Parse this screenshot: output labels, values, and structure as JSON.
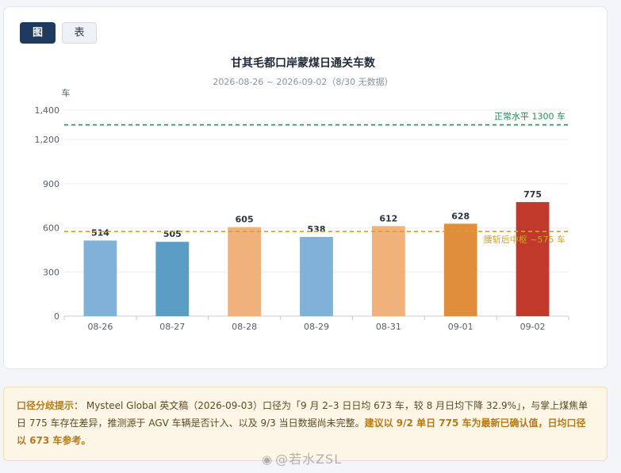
{
  "tabs": [
    {
      "label": "图",
      "active": true
    },
    {
      "label": "表",
      "active": false
    }
  ],
  "chart_data": {
    "type": "bar",
    "title": "甘其毛都口岸蒙煤日通关车数",
    "subtitle": "2026-08-26 ~ 2026-09-02（8/30 无数据）",
    "ylabel": "车",
    "xlabel": "",
    "ylim": [
      0,
      1400
    ],
    "yticks": [
      0,
      300,
      600,
      900,
      1200,
      1400
    ],
    "ytick_labels": [
      "0",
      "300",
      "600",
      "900",
      "1,200",
      "1,400"
    ],
    "categories": [
      "08-26",
      "08-27",
      "08-28",
      "08-29",
      "08-31",
      "09-01",
      "09-02"
    ],
    "values": [
      514,
      505,
      605,
      538,
      612,
      628,
      775
    ],
    "data_labels": [
      "514",
      "505",
      "605",
      "538",
      "612",
      "628",
      "775"
    ],
    "bar_colors": [
      "#7fb2d6",
      "#5b9cc5",
      "#f0b27a",
      "#7fb2d6",
      "#f0b27a",
      "#e08e3c",
      "#c0392b"
    ],
    "grid": true,
    "legend": "none",
    "reference_lines": [
      {
        "label": "正常水平 1300 车",
        "value": 1300,
        "color": "#2e8b57"
      },
      {
        "label": "腰斩后中枢 ~575 车",
        "value": 575,
        "color": "#d4a030"
      }
    ]
  },
  "notice": {
    "lead": "口径分歧提示：",
    "body": "Mysteel Global 英文稿（2026-09-03）口径为「9 月 2–3 日日均 673 车，较 8 月日均下降 32.9%」，与掌上煤焦单日 775 车存在差异，推测源于 AGV 车辆是否计入、以及 9/3 当日数据尚未完整。",
    "emphasis": "建议以 9/2 单日 775 车为最新已确认值，日均口径以 673 车参考。"
  },
  "watermark": {
    "icon": "weibo-icon",
    "text": "@若水ZSL"
  }
}
